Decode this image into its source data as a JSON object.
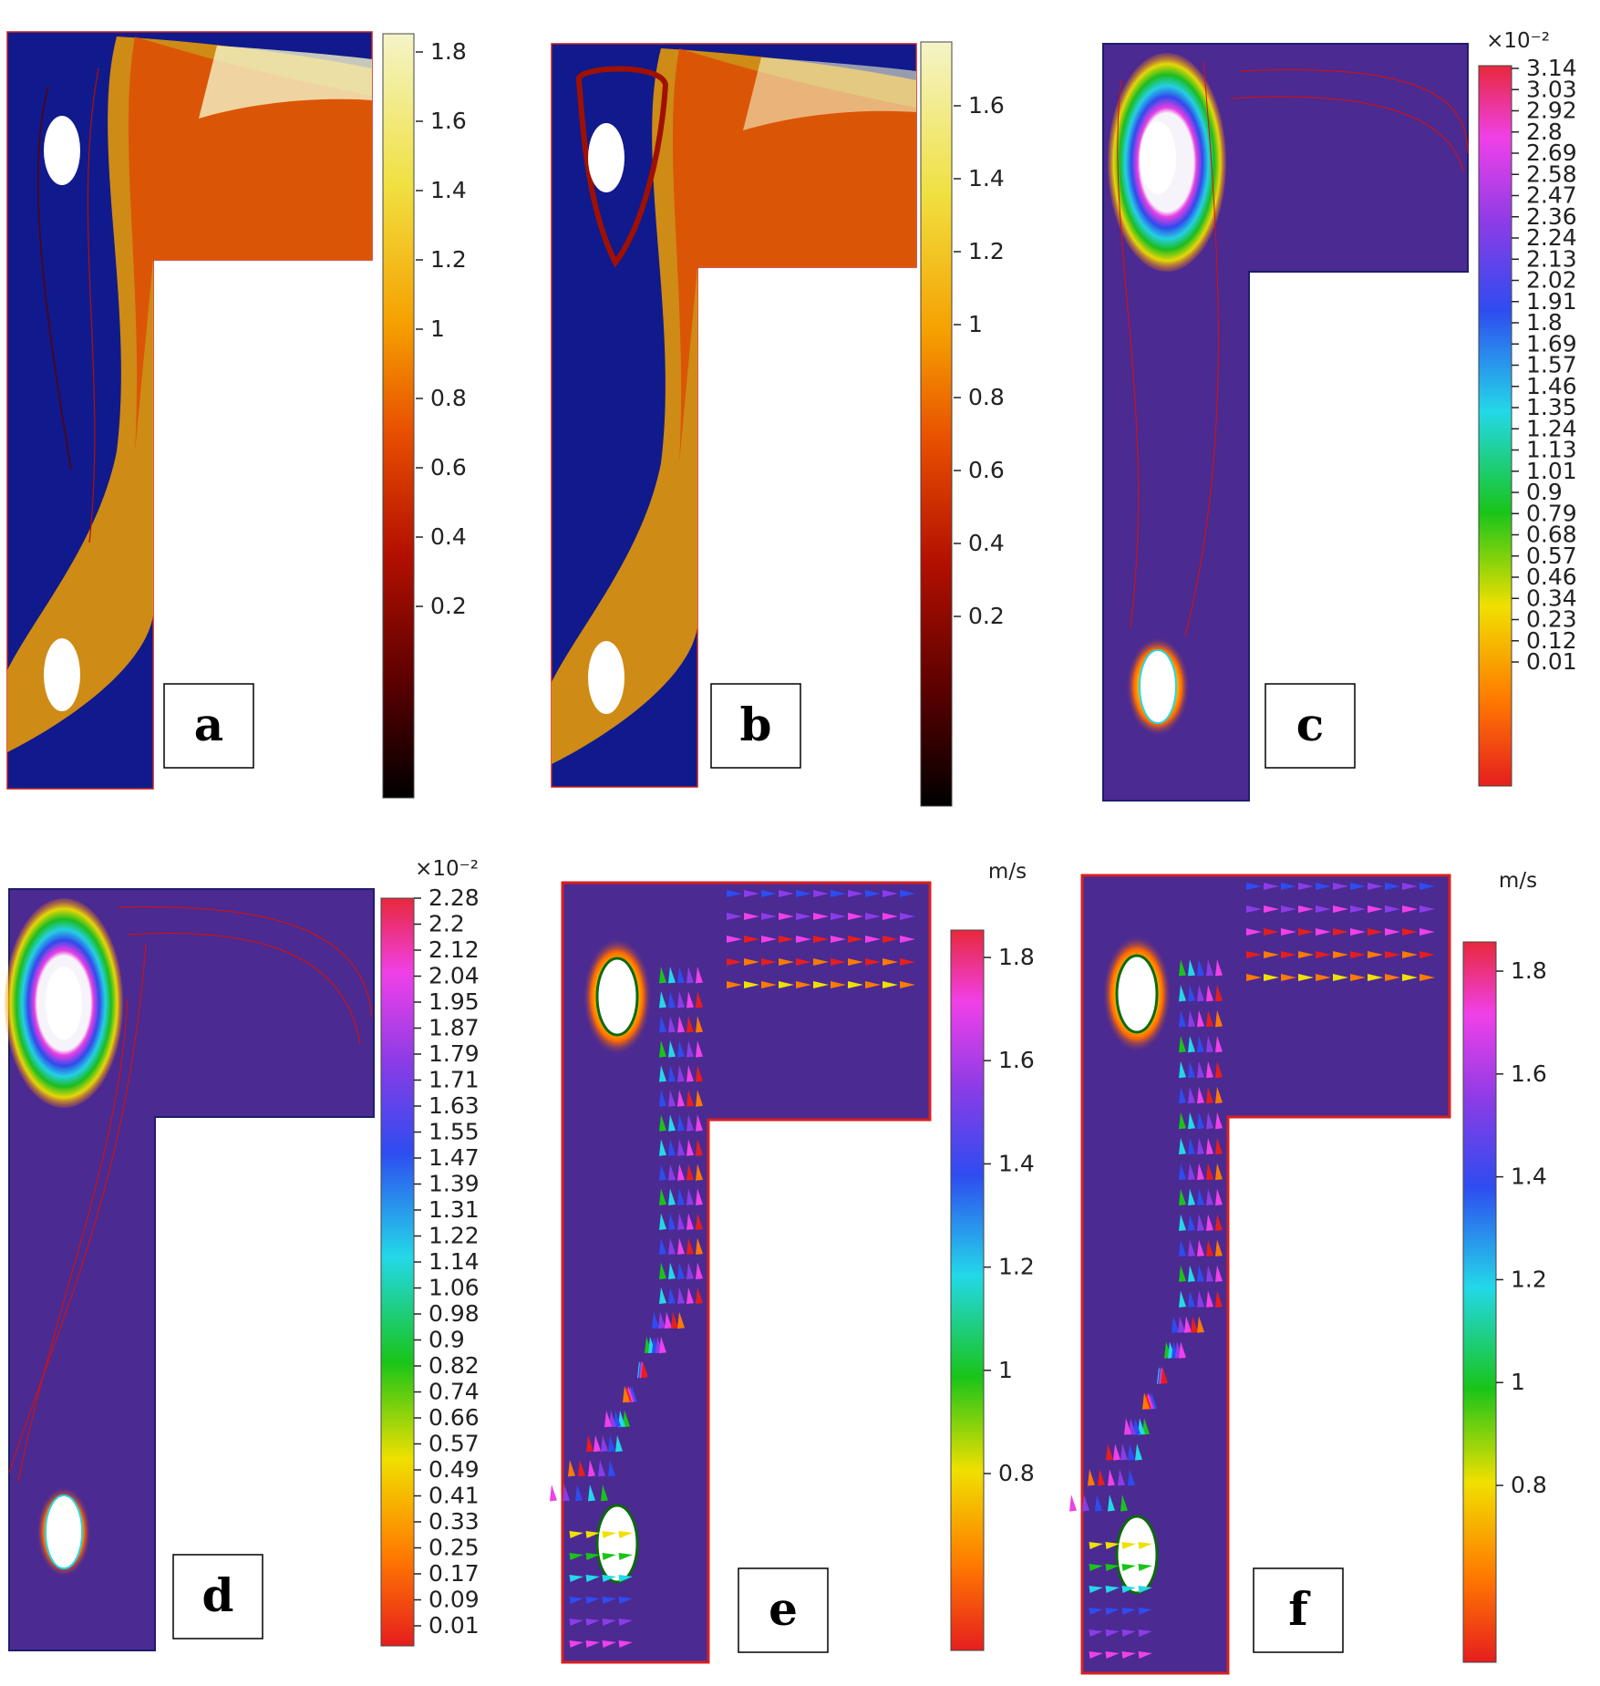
{
  "panels": [
    {
      "id": "a",
      "label": "a",
      "plot": "velocity",
      "unit": "",
      "multiplier": "",
      "ticks": [
        "1.8",
        "1.6",
        "1.4",
        "1.2",
        "1",
        "0.8",
        "0.6",
        "0.4",
        "0.2"
      ]
    },
    {
      "id": "b",
      "label": "b",
      "plot": "velocity",
      "unit": "",
      "multiplier": "",
      "ticks": [
        "1.6",
        "1.4",
        "1.2",
        "1",
        "0.8",
        "0.6",
        "0.4",
        "0.2"
      ]
    },
    {
      "id": "c",
      "label": "c",
      "plot": "contour",
      "unit": "",
      "multiplier": "×10⁻²",
      "ticks": [
        "3.14",
        "3.03",
        "2.92",
        "2.8",
        "2.69",
        "2.58",
        "2.47",
        "2.36",
        "2.24",
        "2.13",
        "2.02",
        "1.91",
        "1.8",
        "1.69",
        "1.57",
        "1.46",
        "1.35",
        "1.24",
        "1.13",
        "1.01",
        "0.9",
        "0.79",
        "0.68",
        "0.57",
        "0.46",
        "0.34",
        "0.23",
        "0.12",
        "0.01"
      ]
    },
    {
      "id": "d",
      "label": "d",
      "plot": "contour",
      "unit": "",
      "multiplier": "×10⁻²",
      "ticks": [
        "2.28",
        "2.2",
        "2.12",
        "2.04",
        "1.95",
        "1.87",
        "1.79",
        "1.71",
        "1.63",
        "1.55",
        "1.47",
        "1.39",
        "1.31",
        "1.22",
        "1.14",
        "1.06",
        "0.98",
        "0.9",
        "0.82",
        "0.74",
        "0.66",
        "0.57",
        "0.49",
        "0.41",
        "0.33",
        "0.25",
        "0.17",
        "0.09",
        "0.01"
      ]
    },
    {
      "id": "e",
      "label": "e",
      "plot": "arrows",
      "unit": "m/s",
      "multiplier": "",
      "ticks": [
        "1.8",
        "1.6",
        "1.4",
        "1.2",
        "1",
        "0.8"
      ]
    },
    {
      "id": "f",
      "label": "f",
      "plot": "arrows",
      "unit": "m/s",
      "multiplier": "",
      "ticks": [
        "1.8",
        "1.6",
        "1.4",
        "1.2",
        "1",
        "0.8"
      ]
    }
  ],
  "colors": {
    "background": "#ffffff",
    "heat_scale": [
      "#000000",
      "#5a0000",
      "#b41000",
      "#e85000",
      "#f5a000",
      "#f0e040",
      "#f4f4c8"
    ],
    "jet_scale": [
      "#0a0a9a",
      "#1e3cff",
      "#00c8ff",
      "#6cf08c",
      "#f0f000",
      "#ff9000",
      "#e01000"
    ],
    "rainbow_scale": [
      "#e61e1e",
      "#ff7a00",
      "#f0e000",
      "#19c419",
      "#23d8e8",
      "#2e4cf0",
      "#8a3ce6",
      "#f040e8",
      "#e8283c"
    ],
    "domain_purple": "#4b2a92",
    "domain_red_line": "#d82020"
  }
}
